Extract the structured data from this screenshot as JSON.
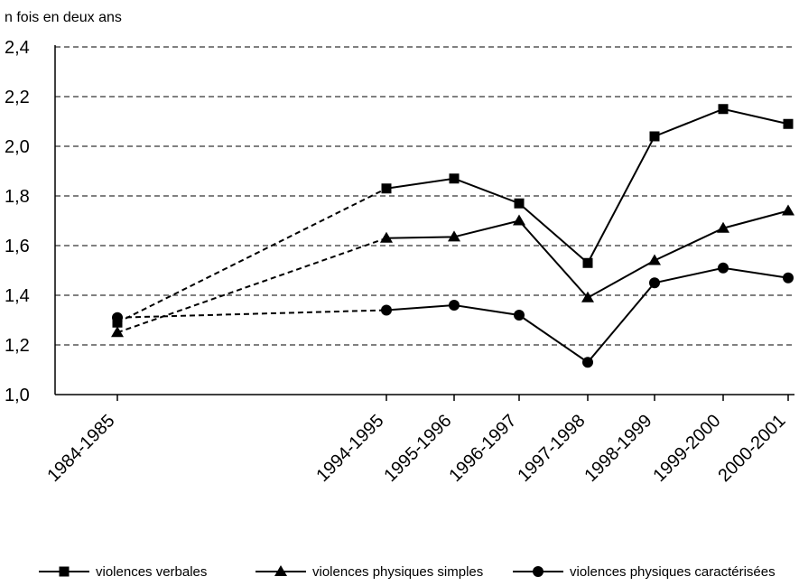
{
  "chart_data": {
    "type": "line",
    "ylabel": "n fois en deux ans",
    "ylim": [
      1.0,
      2.4
    ],
    "yticks": [
      "1,0",
      "1,2",
      "1,4",
      "1,6",
      "1,8",
      "2,0",
      "2,2",
      "2,4"
    ],
    "grid": true,
    "legend_position": "bottom",
    "categories": [
      "1984-1985",
      "1994-1995",
      "1995-1996",
      "1996-1997",
      "1997-1998",
      "1998-1999",
      "1999-2000",
      "2000-2001"
    ],
    "gap_after_index": 0,
    "series": [
      {
        "name": "violences verbales",
        "marker": "square",
        "values": [
          1.29,
          1.83,
          1.87,
          1.77,
          1.53,
          2.04,
          2.15,
          2.09
        ]
      },
      {
        "name": "violences physiques simples",
        "marker": "triangle",
        "values": [
          1.25,
          1.63,
          1.635,
          1.7,
          1.39,
          1.54,
          1.67,
          1.74
        ]
      },
      {
        "name": "violences physiques caractérisées",
        "marker": "circle",
        "values": [
          1.31,
          1.34,
          1.36,
          1.32,
          1.13,
          1.45,
          1.51,
          1.47
        ]
      }
    ]
  }
}
